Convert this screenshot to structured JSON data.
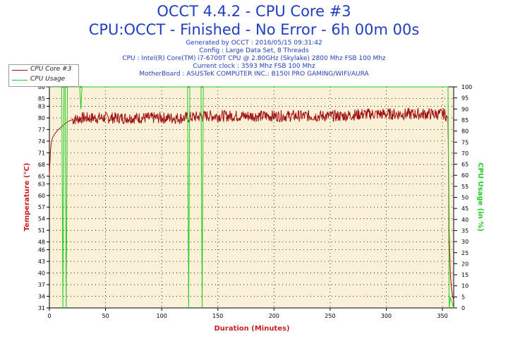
{
  "header": {
    "title": "OCCT 4.4.2 - CPU Core #3",
    "subtitle": "CPU:OCCT - Finished - No Error - 6h 00m 00s",
    "info_lines": [
      "Generated by OCCT : 2016/05/15 09:31:42",
      "Config : Large Data Set, 8 Threads",
      "CPU : Intel(R) Core(TM) i7-6700T CPU @ 2.80GHz (Skylake) 2800 Mhz FSB 100 Mhz",
      "Current clock : 3593 Mhz FSB 100 Mhz",
      "MotherBoard : ASUSTeK COMPUTER INC.: B150I PRO GAMING/WIFI/AURA"
    ]
  },
  "legend": {
    "items": [
      {
        "label": "CPU Core #3",
        "color": "#a01010"
      },
      {
        "label": "CPU Usage",
        "color": "#22cc22"
      }
    ]
  },
  "chart_data": {
    "type": "line",
    "title": "OCCT 4.4.2 - CPU Core #3",
    "xlabel": "Duration (Minutes)",
    "ylabel": "Temperature (°C)",
    "y2label": "CPU Usage (in %)",
    "xlim": [
      0,
      360
    ],
    "ylim": [
      31,
      88
    ],
    "y2lim": [
      0,
      100
    ],
    "x_ticks": [
      0,
      50,
      100,
      150,
      200,
      250,
      300,
      350
    ],
    "y_ticks": [
      31,
      34,
      37,
      40,
      43,
      46,
      48,
      51,
      54,
      57,
      60,
      63,
      65,
      68,
      71,
      74,
      77,
      80,
      83,
      85,
      88
    ],
    "y2_ticks": [
      0,
      5,
      10,
      15,
      20,
      25,
      30,
      35,
      40,
      45,
      50,
      55,
      60,
      65,
      70,
      75,
      80,
      85,
      90,
      95,
      100
    ],
    "series": [
      {
        "name": "CPU Core #3",
        "color": "#a01010",
        "axis": "left",
        "x": [
          0,
          1,
          2,
          3,
          5,
          8,
          12,
          16,
          20,
          30,
          40,
          60,
          80,
          100,
          120,
          140,
          160,
          180,
          200,
          220,
          240,
          260,
          280,
          300,
          320,
          340,
          352,
          355,
          356,
          357,
          358,
          359,
          360
        ],
        "values": [
          65,
          72,
          74,
          75,
          76,
          77,
          78,
          79,
          79.5,
          80,
          80,
          80,
          80,
          80,
          80,
          80.5,
          80.5,
          80.5,
          80.5,
          80.5,
          80.5,
          80.5,
          81,
          81,
          81,
          81,
          81,
          80,
          50,
          40,
          36,
          34,
          33
        ],
        "noise": 1.5
      },
      {
        "name": "CPU Usage",
        "color": "#22cc22",
        "axis": "right",
        "x": [
          0,
          11,
          12,
          13,
          14,
          15,
          16,
          17,
          27,
          28,
          29,
          123,
          124,
          125,
          135,
          136,
          137,
          355,
          356,
          357,
          360
        ],
        "values": [
          100,
          100,
          0,
          100,
          100,
          0,
          100,
          100,
          100,
          90,
          100,
          100,
          0,
          100,
          100,
          0,
          100,
          100,
          0,
          5,
          0
        ]
      }
    ]
  }
}
